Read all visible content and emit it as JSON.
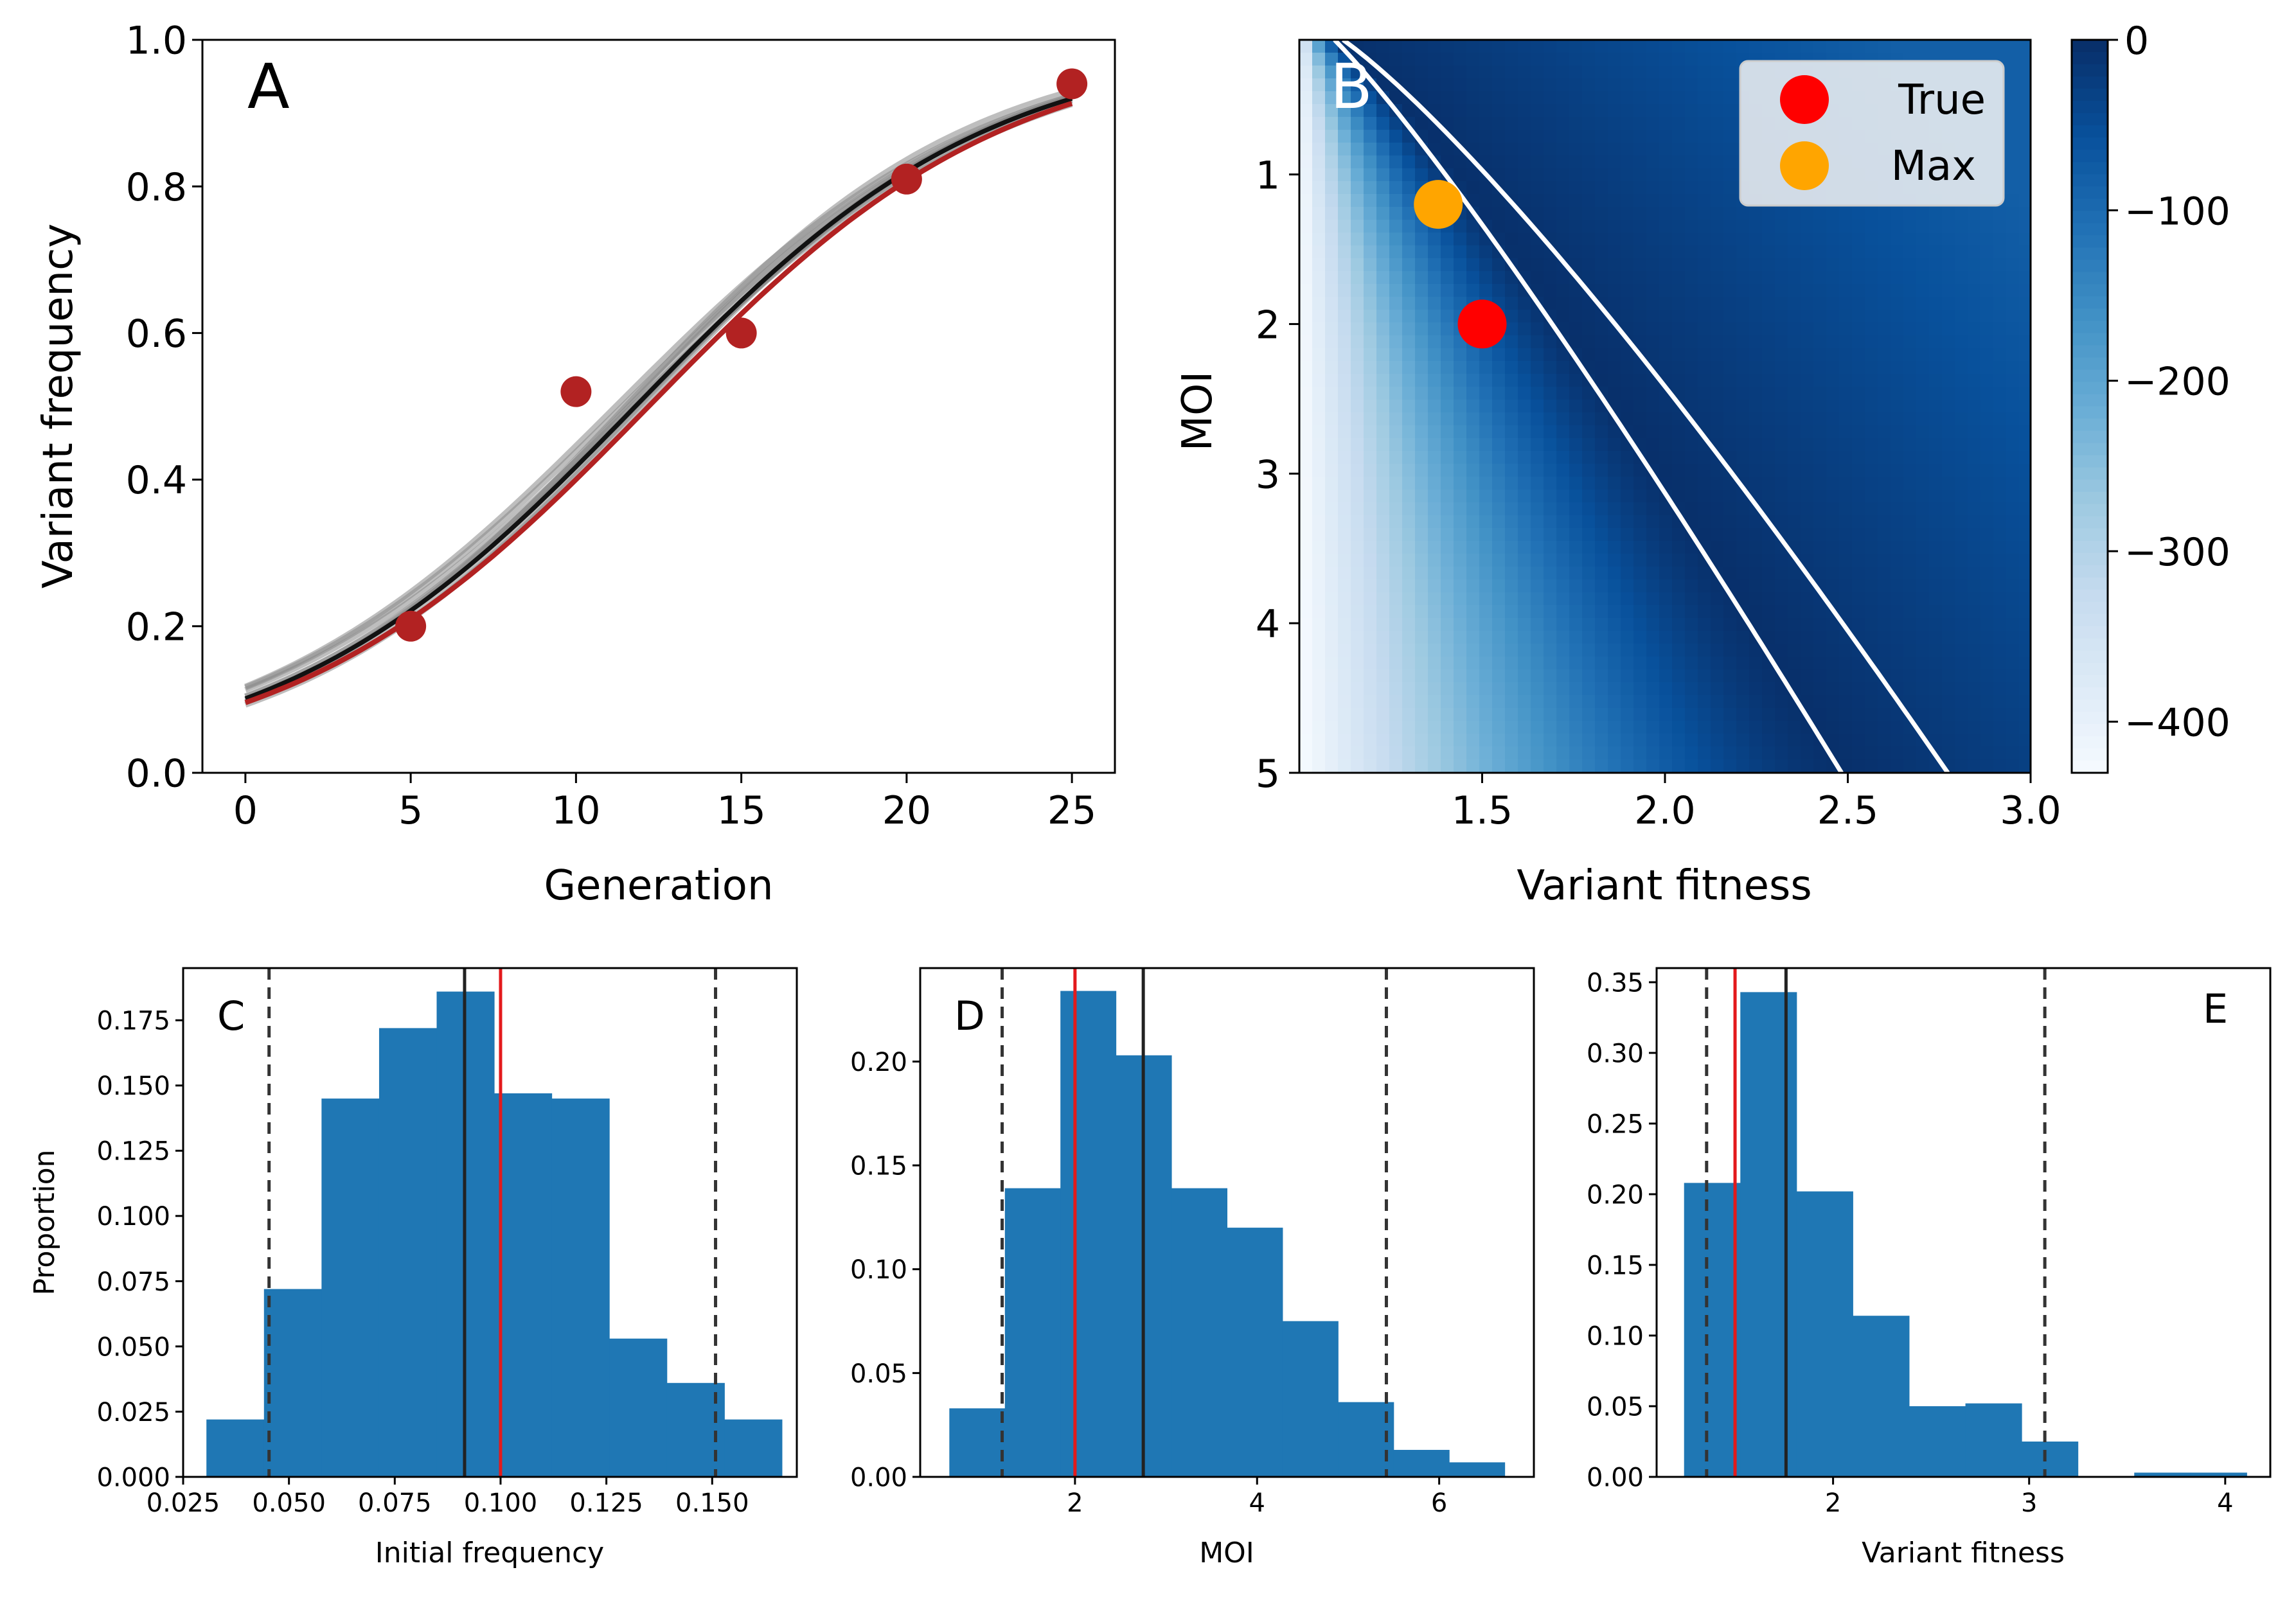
{
  "chart_data": [
    {
      "panel": "A",
      "type": "line",
      "panel_label": "A",
      "xlabel": "Generation",
      "ylabel": "Variant frequency",
      "xlim": [
        -1.3,
        26.3
      ],
      "ylim": [
        0.0,
        1.0
      ],
      "xticks": [
        0,
        5,
        10,
        15,
        20,
        25
      ],
      "xtick_labels": [
        "0",
        "5",
        "10",
        "15",
        "20",
        "25"
      ],
      "yticks": [
        0.0,
        0.2,
        0.4,
        0.6,
        0.8,
        1.0
      ],
      "ytick_labels": [
        "0.0",
        "0.2",
        "0.4",
        "0.6",
        "0.8",
        "1.0"
      ],
      "observed_points": {
        "x": [
          5,
          10,
          15,
          20,
          25
        ],
        "y": [
          0.2,
          0.52,
          0.6,
          0.81,
          0.94
        ],
        "color": "#b22222"
      },
      "true_curve": {
        "x0": 12.2,
        "k": 0.184,
        "color": "#b22222"
      },
      "sample_curves": [
        {
          "x0": 11.2,
          "k": 0.18
        },
        {
          "x0": 11.4,
          "k": 0.178
        },
        {
          "x0": 11.6,
          "k": 0.186
        },
        {
          "x0": 11.8,
          "k": 0.182
        },
        {
          "x0": 11.9,
          "k": 0.188
        },
        {
          "x0": 12.0,
          "k": 0.19
        },
        {
          "x0": 11.5,
          "k": 0.192
        },
        {
          "x0": 11.7,
          "k": 0.176
        }
      ],
      "best_curve": {
        "x0": 11.8,
        "k": 0.185,
        "color": "#111111"
      }
    },
    {
      "panel": "B",
      "type": "heatmap",
      "panel_label": "B",
      "xlabel": "Variant fitness",
      "ylabel": "MOI",
      "xlim": [
        1.0,
        3.0
      ],
      "ylim": [
        5.0,
        0.1
      ],
      "xticks": [
        1.5,
        2.0,
        2.5,
        3.0
      ],
      "xtick_labels": [
        "1.5",
        "2.0",
        "2.5",
        "3.0"
      ],
      "yticks": [
        1,
        2,
        3,
        4,
        5
      ],
      "ytick_labels": [
        "1",
        "2",
        "3",
        "4",
        "5"
      ],
      "colorbar": {
        "min": -430,
        "max": 0,
        "ticks": [
          0,
          -100,
          -200,
          -300,
          -400
        ],
        "tick_labels": [
          "0",
          "−100",
          "−200",
          "−300",
          "−400"
        ],
        "cmap": "Blues"
      },
      "ridge": {
        "a": 1.2,
        "c": 1.05
      },
      "contours": [
        {
          "a": 1.14,
          "c": 0.97
        },
        {
          "a": 1.22,
          "c": 1.28
        }
      ],
      "markers": [
        {
          "label": "True",
          "x": 1.5,
          "y": 2.0,
          "color": "#ff0000"
        },
        {
          "label": "Max",
          "x": 1.38,
          "y": 1.2,
          "color": "#ffa500"
        }
      ],
      "legend": {
        "position": "top-right",
        "entries": [
          "True",
          "Max"
        ]
      }
    },
    {
      "panel": "C",
      "type": "bar",
      "panel_label": "C",
      "xlabel": "Initial frequency",
      "ylabel": "Proportion",
      "xlim": [
        0.025,
        0.17
      ],
      "ylim": [
        0.0,
        0.195
      ],
      "xticks": [
        0.025,
        0.05,
        0.075,
        0.1,
        0.125,
        0.15
      ],
      "xtick_labels": [
        "0.025",
        "0.050",
        "0.075",
        "0.100",
        "0.125",
        "0.150"
      ],
      "yticks": [
        0.0,
        0.025,
        0.05,
        0.075,
        0.1,
        0.125,
        0.15,
        0.175
      ],
      "ytick_labels": [
        "0.000",
        "0.025",
        "0.050",
        "0.075",
        "0.100",
        "0.125",
        "0.150",
        "0.175"
      ],
      "bin_edges": [
        0.0305,
        0.0441,
        0.0577,
        0.0713,
        0.0849,
        0.0985,
        0.1121,
        0.1257,
        0.1393,
        0.1529,
        0.1665
      ],
      "values": [
        0.022,
        0.072,
        0.145,
        0.172,
        0.186,
        0.147,
        0.145,
        0.053,
        0.036,
        0.022
      ],
      "bar_color": "#1f77b4",
      "vlines": [
        {
          "x": 0.0453,
          "style": "dashed",
          "color": "#333333"
        },
        {
          "x": 0.1508,
          "style": "dashed",
          "color": "#333333"
        },
        {
          "x": 0.0915,
          "style": "solid",
          "color": "#222222"
        },
        {
          "x": 0.1,
          "style": "solid",
          "color": "#e31a1c"
        }
      ]
    },
    {
      "panel": "D",
      "type": "bar",
      "panel_label": "D",
      "xlabel": "MOI",
      "ylabel": "",
      "xlim": [
        0.3,
        7.04
      ],
      "ylim": [
        0.0,
        0.245
      ],
      "xticks": [
        2,
        4,
        6
      ],
      "xtick_labels": [
        "2",
        "4",
        "6"
      ],
      "yticks": [
        0.0,
        0.05,
        0.1,
        0.15,
        0.2
      ],
      "ytick_labels": [
        "0.00",
        "0.05",
        "0.10",
        "0.15",
        "0.20"
      ],
      "bin_edges": [
        0.62,
        1.23,
        1.84,
        2.45,
        3.06,
        3.67,
        4.28,
        4.89,
        5.5,
        6.11,
        6.72
      ],
      "values": [
        0.033,
        0.139,
        0.234,
        0.203,
        0.139,
        0.12,
        0.075,
        0.036,
        0.013,
        0.007
      ],
      "bar_color": "#1f77b4",
      "vlines": [
        {
          "x": 1.2,
          "style": "dashed",
          "color": "#333333"
        },
        {
          "x": 5.42,
          "style": "dashed",
          "color": "#333333"
        },
        {
          "x": 2.75,
          "style": "solid",
          "color": "#222222"
        },
        {
          "x": 2.0,
          "style": "solid",
          "color": "#e31a1c"
        }
      ]
    },
    {
      "panel": "E",
      "type": "bar",
      "panel_label": "E",
      "xlabel": "Variant fitness",
      "ylabel": "",
      "xlim": [
        1.1,
        4.23
      ],
      "ylim": [
        0.0,
        0.36
      ],
      "xticks": [
        2,
        3,
        4
      ],
      "xtick_labels": [
        "2",
        "3",
        "4"
      ],
      "yticks": [
        0.0,
        0.05,
        0.1,
        0.15,
        0.2,
        0.25,
        0.3,
        0.35
      ],
      "ytick_labels": [
        "0.00",
        "0.05",
        "0.10",
        "0.15",
        "0.20",
        "0.25",
        "0.30",
        "0.35"
      ],
      "bin_edges": [
        1.24,
        1.527,
        1.814,
        2.101,
        2.388,
        2.675,
        2.962,
        3.249,
        3.536,
        3.823,
        4.11
      ],
      "values": [
        0.208,
        0.343,
        0.202,
        0.114,
        0.05,
        0.052,
        0.025,
        0.0,
        0.003,
        0.003
      ],
      "bar_color": "#1f77b4",
      "vlines": [
        {
          "x": 1.355,
          "style": "dashed",
          "color": "#333333"
        },
        {
          "x": 3.08,
          "style": "dashed",
          "color": "#333333"
        },
        {
          "x": 1.76,
          "style": "solid",
          "color": "#222222"
        },
        {
          "x": 1.5,
          "style": "solid",
          "color": "#e31a1c"
        }
      ]
    }
  ]
}
